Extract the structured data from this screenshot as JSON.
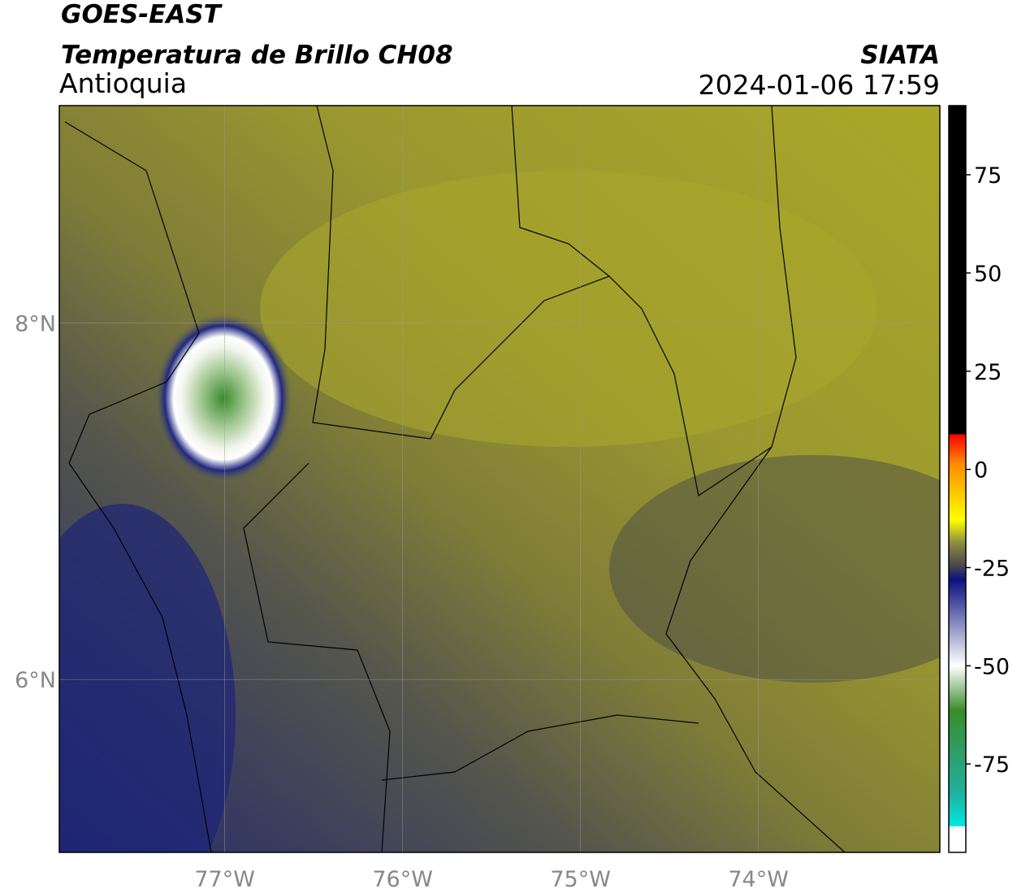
{
  "header": {
    "title": "GOES-EAST",
    "subtitle": "Temperatura de Brillo CH08",
    "region": "Antioquia",
    "source": "SIATA",
    "datetime": "2024-01-06 17:59"
  },
  "map": {
    "lonlim": [
      -77.93,
      -72.98
    ],
    "latlim": [
      5.03,
      9.22
    ],
    "lonticks": [
      {
        "value": -77,
        "label": "77°W"
      },
      {
        "value": -76,
        "label": "76°W"
      },
      {
        "value": -75,
        "label": "75°W"
      },
      {
        "value": -74,
        "label": "74°W"
      }
    ],
    "latticks": [
      {
        "value": 8,
        "label": "8°N"
      },
      {
        "value": 6,
        "label": "6°N"
      }
    ],
    "grid": true
  },
  "colorbar": {
    "lim": [
      -97.5,
      92.6
    ],
    "ticks": [
      75,
      50,
      25,
      0,
      -25,
      -50,
      -75
    ]
  }
}
